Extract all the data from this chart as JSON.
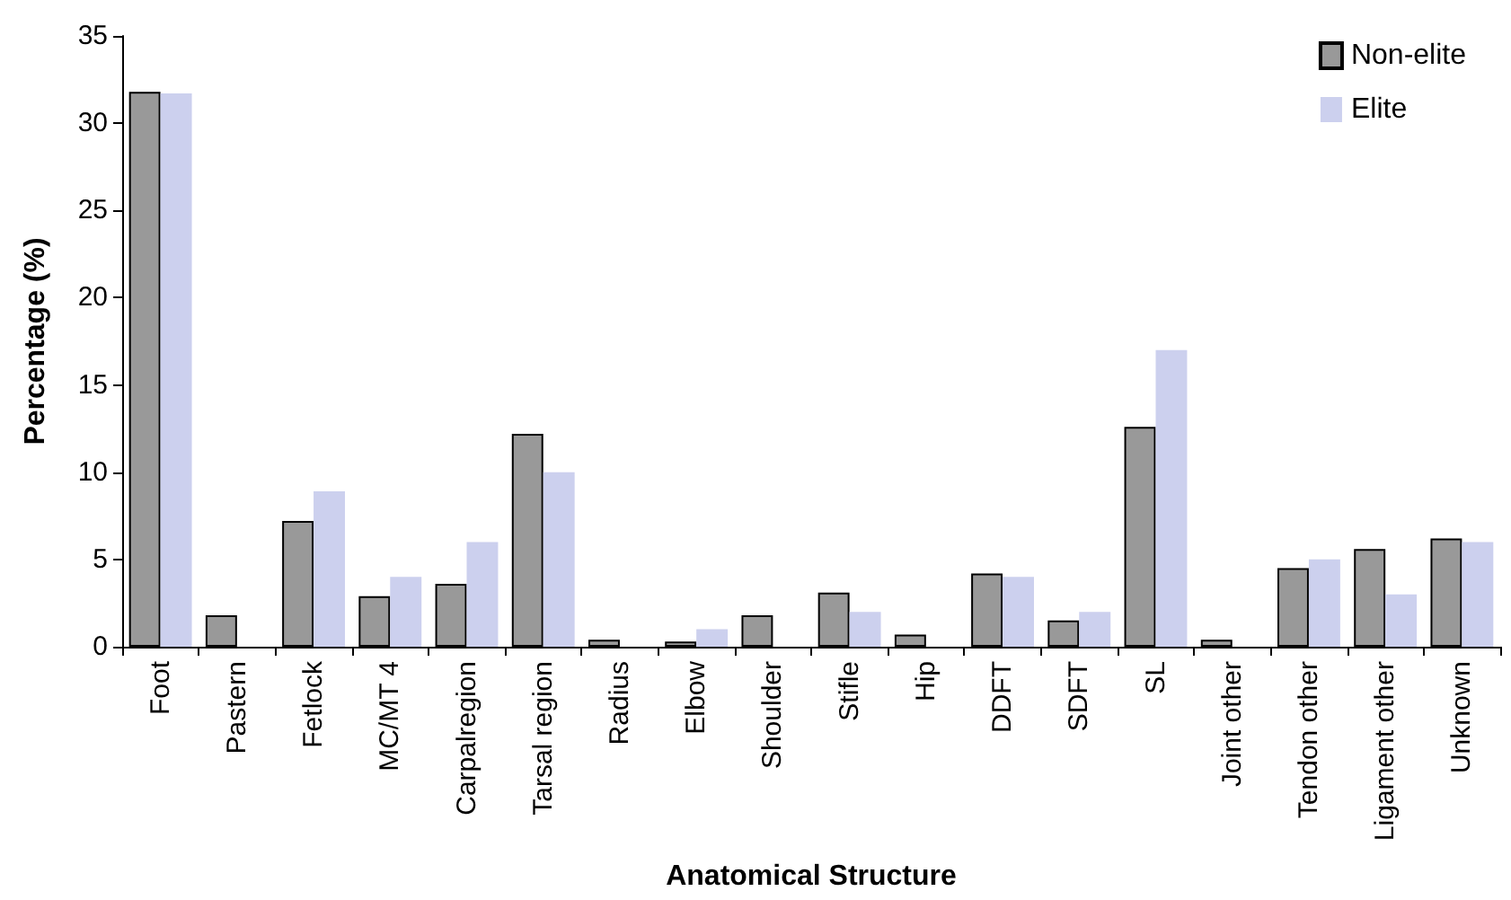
{
  "chart_data": {
    "type": "bar",
    "xlabel": "Anatomical Structure",
    "ylabel": "Percentage (%)",
    "categories": [
      "Foot",
      "Pastern",
      "Fetlock",
      "MC/MT 4",
      "Carpalregion",
      "Tarsal region",
      "Radius",
      "Elbow",
      "Shoulder",
      "Stifle",
      "Hip",
      "DDFT",
      "SDFT",
      "SL",
      "Joint other",
      "Tendon other",
      "Ligament other",
      "Unknown"
    ],
    "series": [
      {
        "name": "Non-elite",
        "color": "#999999",
        "values": [
          31.8,
          1.8,
          7.2,
          2.9,
          3.6,
          12.2,
          0.4,
          0.3,
          1.8,
          3.1,
          0.7,
          4.2,
          1.5,
          12.6,
          0.4,
          4.5,
          5.6,
          6.2
        ]
      },
      {
        "name": "Elite",
        "color": "#ccd0ee",
        "values": [
          31.7,
          0,
          8.9,
          4.0,
          6.0,
          10.0,
          0,
          1.0,
          0,
          2.0,
          0,
          4.0,
          2.0,
          17.0,
          0,
          5.0,
          3.0,
          6.0
        ]
      }
    ],
    "ylim": [
      0,
      35
    ],
    "yticks": [
      0,
      5,
      10,
      15,
      20,
      25,
      30,
      35
    ],
    "grid": false,
    "legend": "top right"
  }
}
